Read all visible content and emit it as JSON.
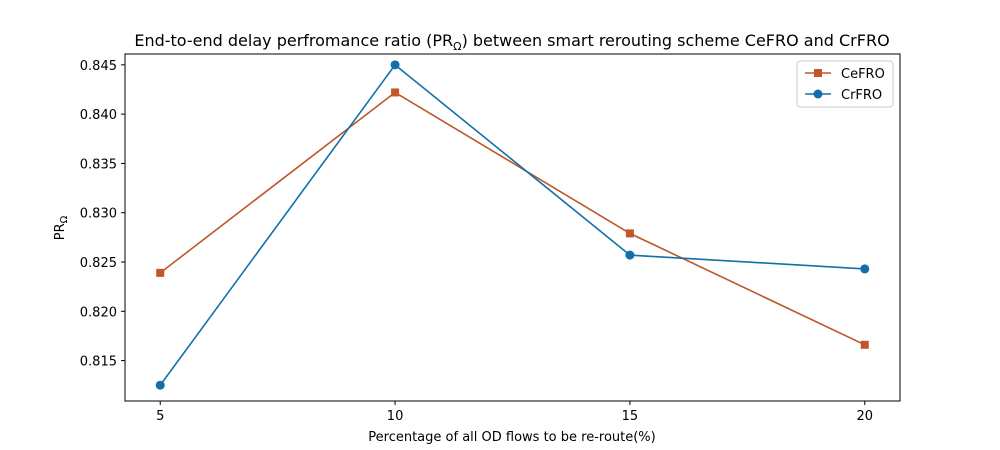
{
  "chart_data": {
    "type": "line",
    "title_prefix": "End-to-end delay perfromance ratio (PR",
    "title_subscript": "Ω",
    "title_suffix": ") between smart rerouting scheme CeFRO and CrFRO",
    "xlabel": "Percentage of all OD flows to be re-route(%)",
    "ylabel_main": "PR",
    "ylabel_subscript": "Ω",
    "x": [
      5,
      10,
      15,
      20
    ],
    "xlim": [
      4.25,
      20.75
    ],
    "ylim": [
      0.8109,
      0.8461
    ],
    "xticks": [
      5,
      10,
      15,
      20
    ],
    "yticks": [
      0.815,
      0.82,
      0.825,
      0.83,
      0.835,
      0.84,
      0.845
    ],
    "ytick_labels": [
      "0.815",
      "0.820",
      "0.825",
      "0.830",
      "0.835",
      "0.840",
      "0.845"
    ],
    "legend_position": "top-right",
    "grid": false,
    "series": [
      {
        "name": "CeFRO",
        "marker": "square",
        "color": "#c0562a",
        "values": [
          0.8239,
          0.8422,
          0.8279,
          0.8166
        ]
      },
      {
        "name": "CrFRO",
        "marker": "circle",
        "color": "#1170aa",
        "values": [
          0.8125,
          0.845,
          0.8257,
          0.8243
        ]
      }
    ]
  }
}
